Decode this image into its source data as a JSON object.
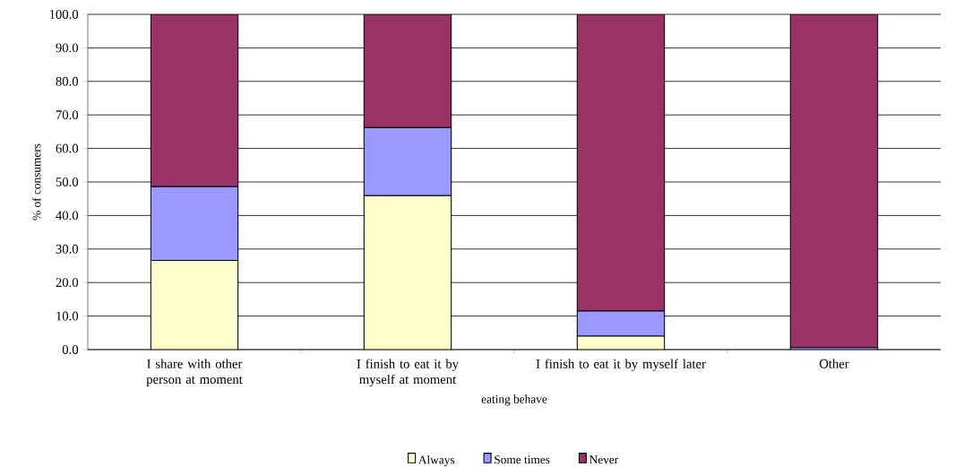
{
  "chart_data": {
    "type": "bar",
    "stacked": true,
    "xlabel": "eating behave",
    "ylabel": "% of consumers",
    "categories": [
      "I share with other person at moment",
      "I finish to eat it by myself at moment",
      "I finish to eat it by myself later",
      "Other"
    ],
    "series": [
      {
        "name": "Always",
        "color": "#ffffcc",
        "values": [
          26.6,
          45.9,
          4.0,
          0
        ]
      },
      {
        "name": "Some times",
        "color": "#9999ff",
        "values": [
          22.0,
          20.3,
          7.5,
          0.6
        ]
      },
      {
        "name": "Never",
        "color": "#993366",
        "values": [
          51.4,
          33.8,
          88.5,
          99.4
        ]
      }
    ],
    "ylim": [
      0,
      100
    ],
    "yticks": [
      {
        "value": 0,
        "label": "0.0"
      },
      {
        "value": 10,
        "label": "10.0"
      },
      {
        "value": 20,
        "label": "20.0"
      },
      {
        "value": 30,
        "label": "30.0"
      },
      {
        "value": 40,
        "label": "40.0"
      },
      {
        "value": 50,
        "label": "50.0"
      },
      {
        "value": 60,
        "label": "60.0"
      },
      {
        "value": 70,
        "label": "70.0"
      },
      {
        "value": 80,
        "label": "80.0"
      },
      {
        "value": 90,
        "label": "90.0"
      },
      {
        "value": 100,
        "label": "100.0"
      }
    ],
    "grid": "y",
    "legend": "bottom"
  }
}
